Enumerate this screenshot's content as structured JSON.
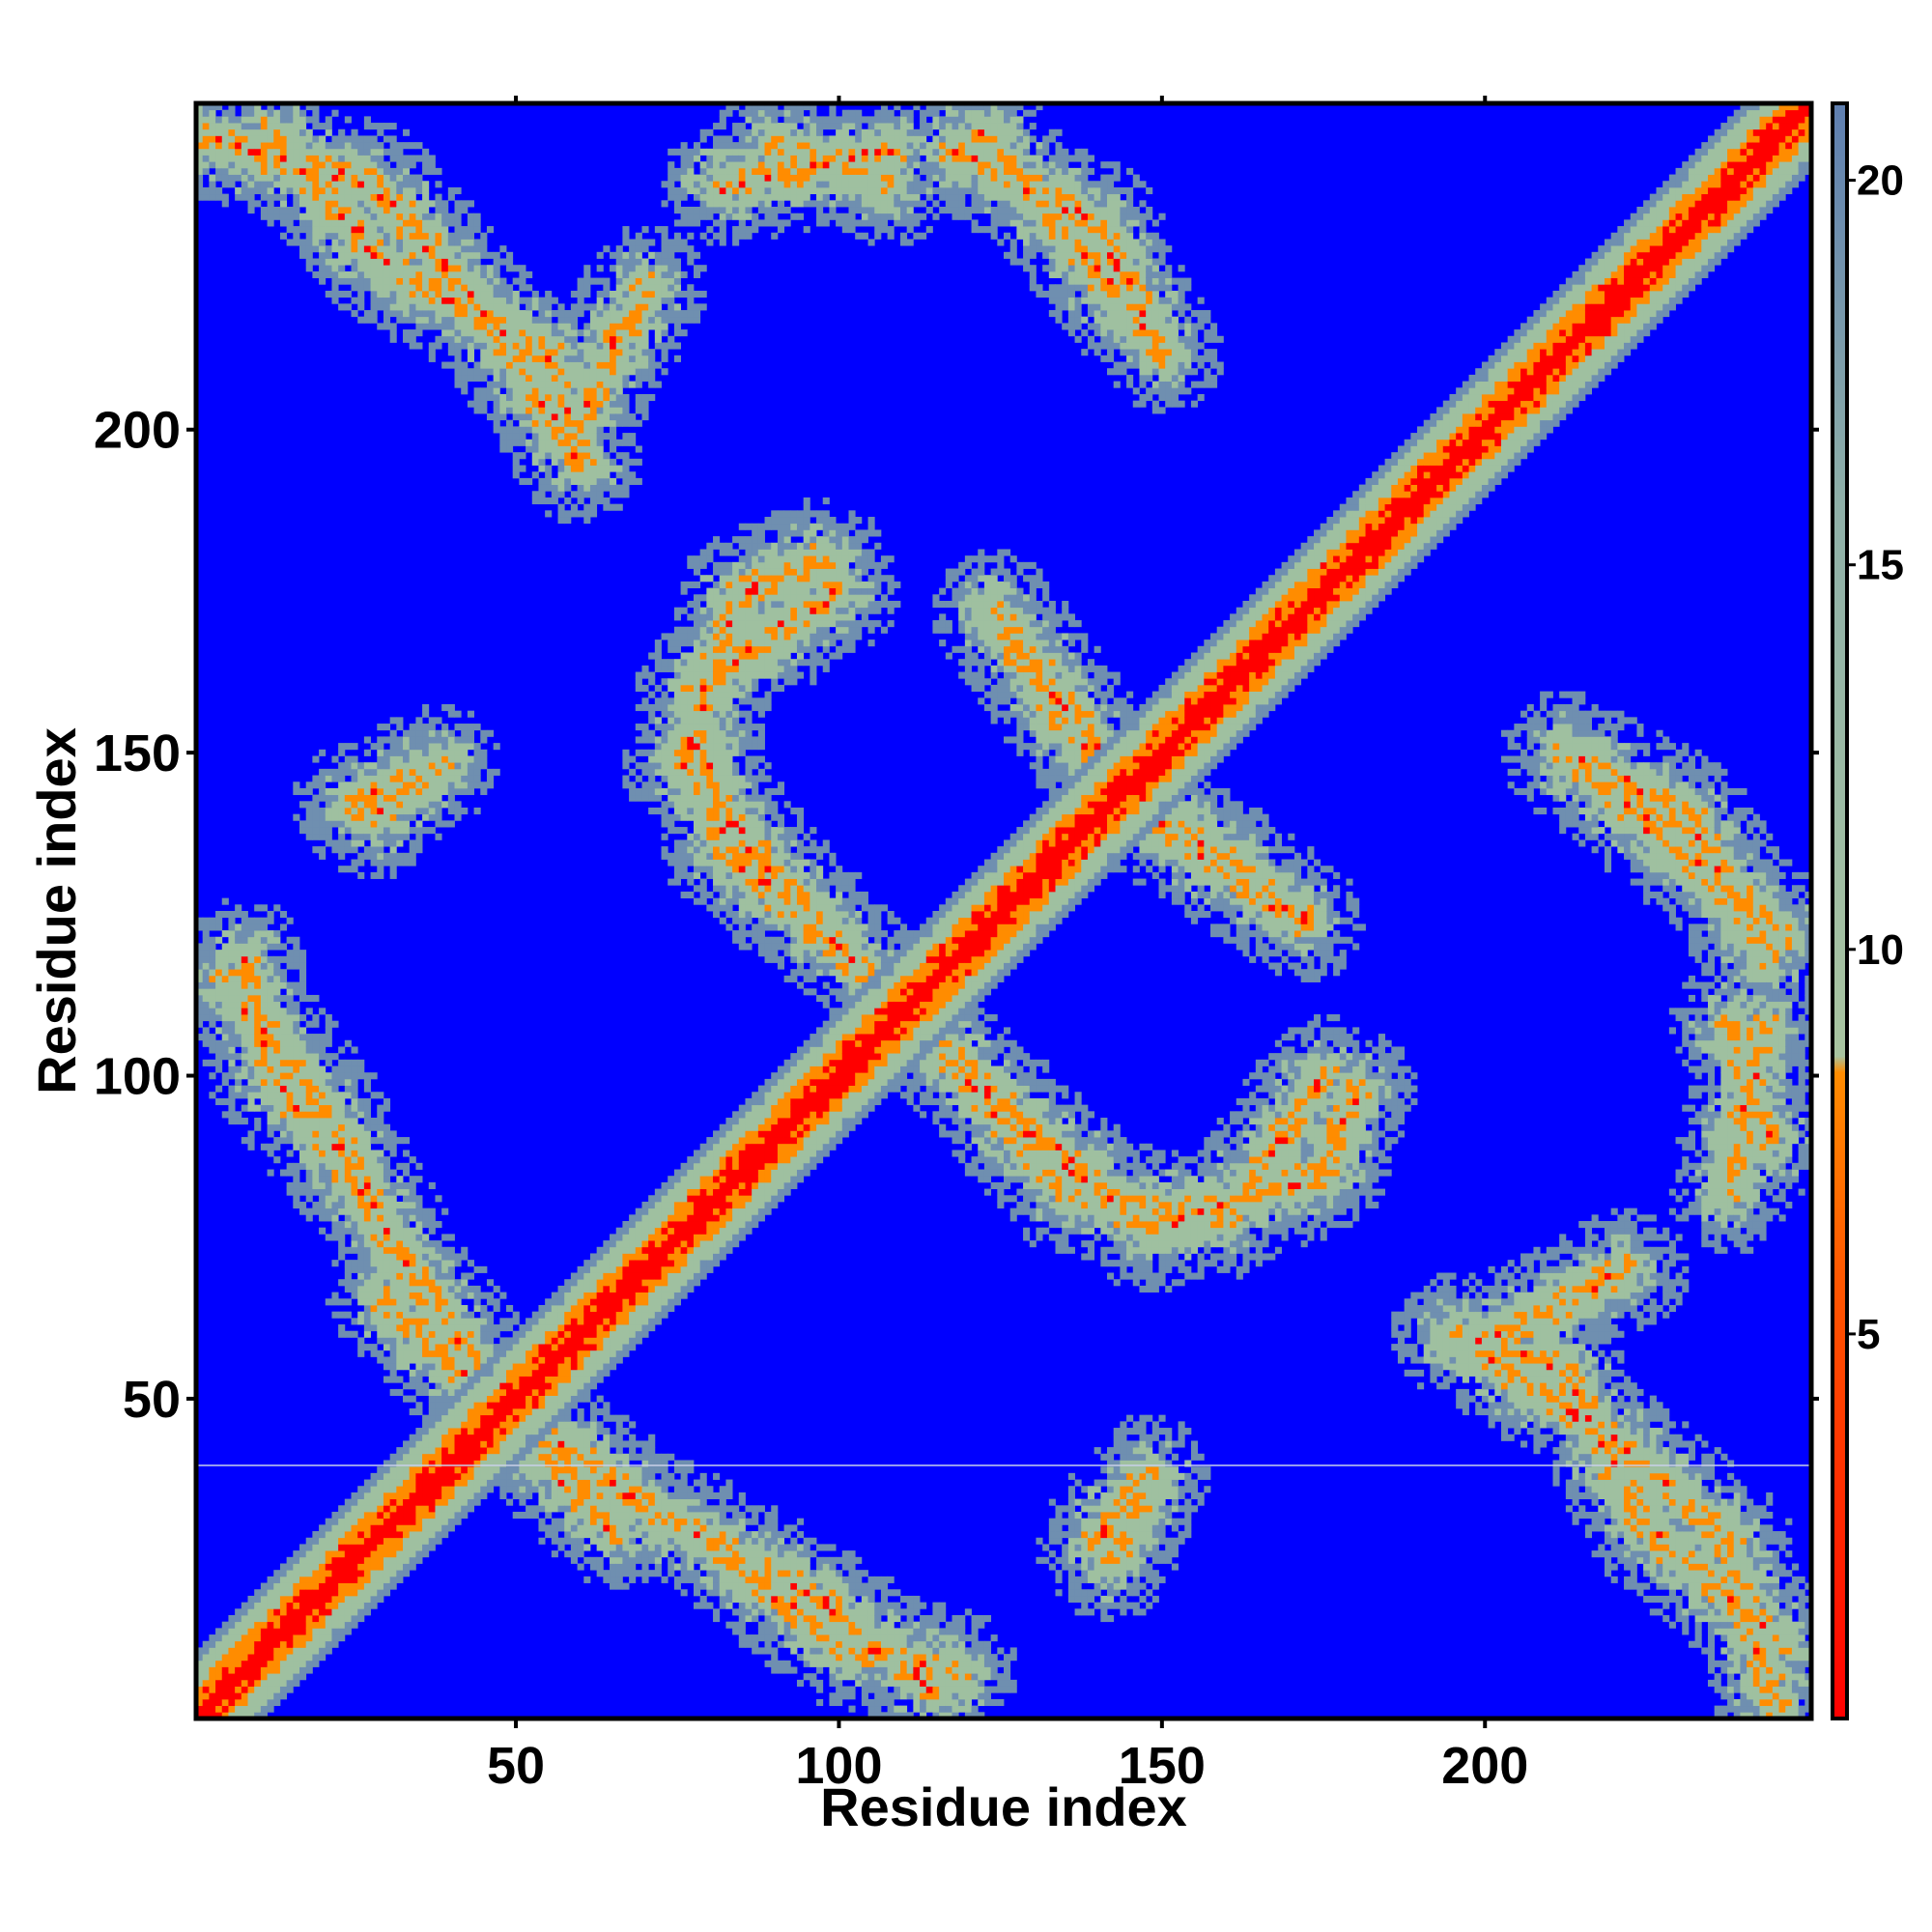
{
  "chart_data": {
    "type": "heatmap",
    "title": "",
    "xlabel": "Residue index",
    "ylabel": "Residue index",
    "n_residues": 250,
    "xlim": [
      1,
      250
    ],
    "ylim": [
      1,
      250
    ],
    "x_ticks": [
      50,
      100,
      150,
      200
    ],
    "y_ticks": [
      50,
      100,
      150,
      200
    ],
    "colorbar": {
      "range": [
        0,
        21
      ],
      "ticks": [
        5,
        10,
        15,
        20
      ],
      "colors": {
        "low": "#ff0000",
        "mid_low": "#ff8c00",
        "mid": "#9fc0a0",
        "high": "#6f8fb0",
        "background": "#0000ff"
      }
    },
    "contact_bands": [
      {
        "from": [
          2,
          245
        ],
        "to": [
          28,
          238
        ]
      },
      {
        "from": [
          28,
          238
        ],
        "to": [
          45,
          218
        ]
      },
      {
        "from": [
          45,
          218
        ],
        "to": [
          58,
          198
        ]
      },
      {
        "from": [
          58,
          198
        ],
        "to": [
          70,
          222
        ]
      },
      {
        "from": [
          82,
          238
        ],
        "to": [
          108,
          243
        ]
      },
      {
        "from": [
          118,
          243
        ],
        "to": [
          140,
          232
        ]
      },
      {
        "from": [
          140,
          232
        ],
        "to": [
          150,
          212
        ]
      },
      {
        "from": [
          85,
          175
        ],
        "to": [
          98,
          180
        ]
      },
      {
        "from": [
          85,
          175
        ],
        "to": [
          76,
          148
        ]
      },
      {
        "from": [
          76,
          148
        ],
        "to": [
          100,
          120
        ]
      },
      {
        "from": [
          100,
          120
        ],
        "to": [
          118,
          102
        ]
      },
      {
        "from": [
          118,
          102
        ],
        "to": [
          135,
          82
        ]
      },
      {
        "from": [
          135,
          82
        ],
        "to": [
          160,
          78
        ]
      },
      {
        "from": [
          160,
          78
        ],
        "to": [
          175,
          100
        ]
      },
      {
        "from": [
          125,
          170
        ],
        "to": [
          140,
          148
        ]
      },
      {
        "from": [
          140,
          148
        ],
        "to": [
          172,
          124
        ]
      },
      {
        "from": [
          212,
          150
        ],
        "to": [
          246,
          122
        ]
      },
      {
        "from": [
          238,
          108
        ],
        "to": [
          244,
          90
        ]
      },
      {
        "from": [
          195,
          60
        ],
        "to": [
          212,
          55
        ]
      },
      {
        "from": [
          212,
          55
        ],
        "to": [
          225,
          30
        ]
      },
      {
        "from": [
          225,
          30
        ],
        "to": [
          246,
          12
        ]
      },
      {
        "from": [
          5,
          115
        ],
        "to": [
          20,
          95
        ]
      },
      {
        "from": [
          20,
          95
        ],
        "to": [
          32,
          72
        ]
      },
      {
        "from": [
          32,
          72
        ],
        "to": [
          55,
          40
        ]
      },
      {
        "from": [
          55,
          40
        ],
        "to": [
          65,
          30
        ]
      },
      {
        "from": [
          25,
          142
        ],
        "to": [
          38,
          148
        ]
      },
      {
        "from": [
          80,
          28
        ],
        "to": [
          100,
          12
        ]
      },
      {
        "from": [
          100,
          12
        ],
        "to": [
          118,
          8
        ]
      },
      {
        "from": [
          140,
          28
        ],
        "to": [
          148,
          38
        ]
      }
    ]
  }
}
